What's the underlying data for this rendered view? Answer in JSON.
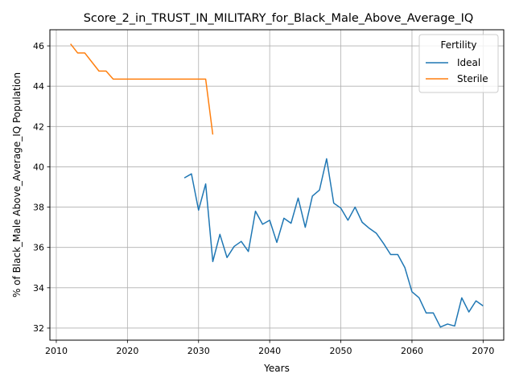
{
  "chart_data": {
    "type": "line",
    "title": "Score_2_in_TRUST_IN_MILITARY_for_Black_Male_Above_Average_IQ",
    "xlabel": "Years",
    "ylabel": "% of Black_Male Above_Average_IQ Population",
    "xlim": [
      2009.1,
      2072.9
    ],
    "ylim": [
      31.4,
      46.8
    ],
    "xticks": [
      2010,
      2020,
      2030,
      2040,
      2050,
      2060,
      2070
    ],
    "yticks": [
      32,
      34,
      36,
      38,
      40,
      42,
      44,
      46
    ],
    "grid": true,
    "legend": {
      "title": "Fertility",
      "position": "top-right"
    },
    "series": [
      {
        "name": "Ideal",
        "color": "#1f77b4",
        "x": [
          2028,
          2029,
          2030,
          2031,
          2032,
          2033,
          2034,
          2035,
          2036,
          2037,
          2038,
          2039,
          2040,
          2041,
          2042,
          2043,
          2044,
          2045,
          2046,
          2047,
          2048,
          2049,
          2050,
          2051,
          2052,
          2053,
          2054,
          2055,
          2056,
          2057,
          2058,
          2059,
          2060,
          2061,
          2062,
          2063,
          2064,
          2065,
          2066,
          2067,
          2068,
          2069,
          2070
        ],
        "y": [
          39.45,
          39.65,
          37.85,
          39.15,
          35.3,
          36.65,
          35.5,
          36.05,
          36.3,
          35.8,
          37.8,
          37.15,
          37.35,
          36.25,
          37.45,
          37.2,
          38.45,
          37.0,
          38.55,
          38.85,
          40.4,
          38.2,
          37.95,
          37.35,
          38.0,
          37.25,
          36.95,
          36.7,
          36.2,
          35.65,
          35.65,
          35.0,
          33.8,
          33.5,
          32.75,
          32.75,
          32.05,
          32.2,
          32.1,
          33.5,
          32.8,
          33.35,
          33.1
        ]
      },
      {
        "name": "Sterile",
        "color": "#ff7f0e",
        "x": [
          2012,
          2013,
          2014,
          2015,
          2016,
          2017,
          2018,
          2019,
          2020,
          2021,
          2022,
          2023,
          2024,
          2025,
          2026,
          2027,
          2028,
          2029,
          2030,
          2031,
          2032
        ],
        "y": [
          46.1,
          45.65,
          45.65,
          45.2,
          44.75,
          44.75,
          44.35,
          44.35,
          44.35,
          44.35,
          44.35,
          44.35,
          44.35,
          44.35,
          44.35,
          44.35,
          44.35,
          44.35,
          44.35,
          44.35,
          41.6
        ]
      }
    ]
  }
}
